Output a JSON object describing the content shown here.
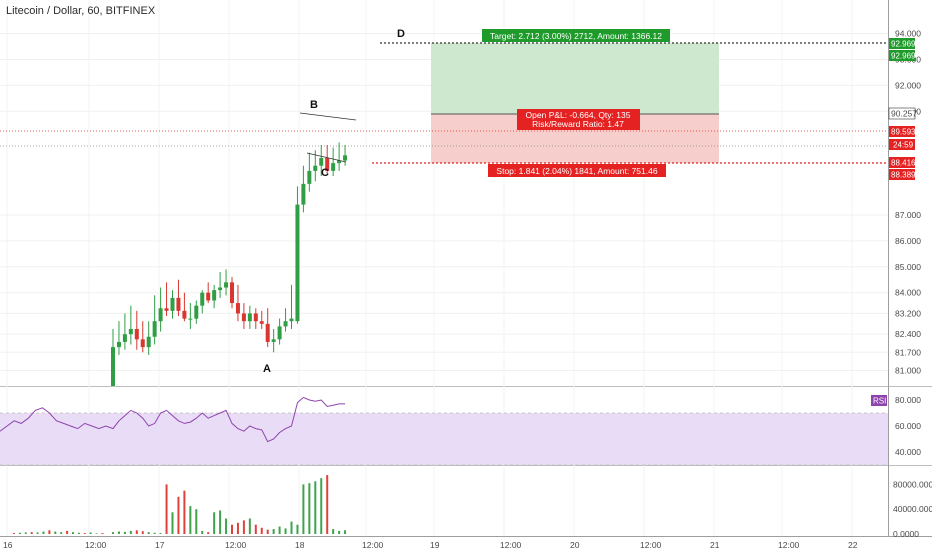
{
  "header": {
    "title": "Litecoin / Dollar, 60, BITFINEX"
  },
  "colors": {
    "bull": "#2f9e44",
    "bear": "#d9362f",
    "volume_up": "#3fa34d",
    "volume_down": "#e0413a",
    "rsi_line": "#8e44ad",
    "rsi_band": "#e9dcf6",
    "target_zone": "#cde8cf",
    "stop_zone": "#f6cfcd",
    "target_label": "#1e9b2b",
    "stop_label": "#e52222"
  },
  "price_axis": {
    "ticks": [
      "94.000",
      "93.000",
      "92.000",
      "91.000",
      "90.257",
      "89.593",
      "24:59",
      "88.416",
      "88.389",
      "87.000",
      "86.000",
      "85.000",
      "84.000",
      "83.200",
      "82.400",
      "81.700",
      "81.000"
    ]
  },
  "price_tags": {
    "target_a": "92.969",
    "target_b": "92.969",
    "current": "90.257",
    "last": "89.593",
    "countdown": "24:59",
    "stop_a": "88.416",
    "stop_b": "88.389"
  },
  "rsi": {
    "label": "RSI",
    "ticks": [
      "80.000",
      "60.000",
      "40.000"
    ]
  },
  "volume": {
    "ticks": [
      "80000.0000",
      "40000.0000",
      "0.0000"
    ]
  },
  "time_axis": {
    "ticks": [
      "16",
      "12:00",
      "17",
      "12:00",
      "18",
      "12:00",
      "19",
      "12:00",
      "20",
      "12:00",
      "21",
      "12:00",
      "22"
    ]
  },
  "patterns": {
    "A": "A",
    "B": "B",
    "C": "C",
    "D": "D"
  },
  "position": {
    "target_text": "Target: 2.712 (3.00%) 2712, Amount: 1366.12",
    "pnl_text": "Open P&L: -0.664, Qty: 135",
    "rr_text": "Risk/Reward Ratio: 1.47",
    "stop_text": "Stop: 1.841 (2.04%) 1841, Amount: 751.46",
    "entry": 90.257,
    "target": 92.969,
    "stop": 88.416
  },
  "chart_data": {
    "type": "candlestick",
    "title": "Litecoin / Dollar, 60, BITFINEX",
    "ylim": [
      80.4,
      94.6
    ],
    "x": [
      1,
      2,
      3,
      4,
      5,
      6,
      7,
      8,
      9,
      10,
      11,
      12,
      13,
      14,
      15,
      16,
      17,
      18,
      19,
      20,
      21,
      22,
      23,
      24,
      25,
      26,
      27,
      28,
      29,
      30,
      31,
      32,
      33,
      34,
      35,
      36,
      37,
      38,
      39,
      40
    ],
    "open": [
      80.4,
      81.9,
      82.1,
      82.4,
      82.6,
      82.2,
      81.9,
      82.3,
      82.9,
      83.4,
      83.3,
      83.8,
      83.3,
      83.0,
      83.0,
      83.5,
      84.0,
      83.7,
      84.1,
      84.2,
      84.4,
      83.6,
      83.2,
      82.9,
      83.2,
      82.9,
      82.8,
      82.1,
      82.2,
      82.7,
      82.9,
      82.9,
      87.4,
      88.2,
      88.7,
      88.9,
      89.2,
      88.7,
      89.0,
      89.1
    ],
    "high": [
      82.6,
      82.9,
      83.2,
      83.5,
      83.3,
      82.9,
      82.9,
      83.9,
      84.2,
      84.4,
      84.1,
      84.5,
      84.0,
      83.6,
      83.7,
      84.1,
      84.4,
      84.3,
      84.8,
      84.9,
      84.6,
      84.3,
      83.6,
      83.5,
      83.4,
      83.3,
      83.4,
      82.6,
      83.0,
      83.4,
      84.3,
      88.1,
      88.9,
      89.4,
      89.5,
      89.7,
      89.7,
      89.6,
      89.8,
      89.7
    ],
    "low": [
      80.4,
      81.6,
      81.8,
      82.0,
      81.8,
      81.7,
      81.6,
      82.0,
      82.5,
      83.1,
      83.0,
      83.1,
      82.9,
      82.6,
      82.8,
      83.2,
      83.6,
      83.4,
      83.8,
      83.9,
      83.4,
      82.9,
      82.6,
      82.6,
      82.6,
      82.6,
      81.9,
      81.7,
      82.0,
      82.5,
      82.6,
      82.8,
      87.1,
      87.9,
      88.3,
      88.5,
      88.6,
      88.5,
      88.7,
      88.9
    ],
    "close": [
      81.9,
      82.1,
      82.4,
      82.6,
      82.2,
      81.9,
      82.3,
      82.9,
      83.4,
      83.3,
      83.8,
      83.3,
      83.0,
      83.0,
      83.5,
      84.0,
      83.7,
      84.1,
      84.2,
      84.4,
      83.6,
      83.2,
      82.9,
      83.2,
      82.9,
      82.8,
      82.1,
      82.2,
      82.7,
      82.9,
      83.0,
      87.4,
      88.2,
      88.7,
      88.9,
      89.2,
      88.7,
      89.0,
      89.1,
      89.3
    ],
    "rsi": [
      58,
      64,
      68,
      72,
      70,
      66,
      60,
      62,
      70,
      72,
      68,
      64,
      62,
      63,
      66,
      70,
      66,
      68,
      70,
      72,
      62,
      58,
      56,
      60,
      58,
      57,
      48,
      50,
      55,
      58,
      60,
      78,
      82,
      80,
      79,
      80,
      75,
      76,
      77,
      77
    ],
    "volume": [
      3000,
      4000,
      3500,
      5000,
      6000,
      4500,
      3000,
      2000,
      1500,
      80000,
      35000,
      60000,
      70000,
      45000,
      40000,
      5000,
      3000,
      35000,
      38000,
      25000,
      15000,
      18000,
      22000,
      25000,
      15000,
      10000,
      7000,
      8000,
      12000,
      9000,
      20000,
      15000,
      80000,
      82000,
      85000,
      90000,
      95000,
      8000,
      5000,
      6000
    ],
    "indicators": [
      "RSI",
      "Volume"
    ]
  }
}
